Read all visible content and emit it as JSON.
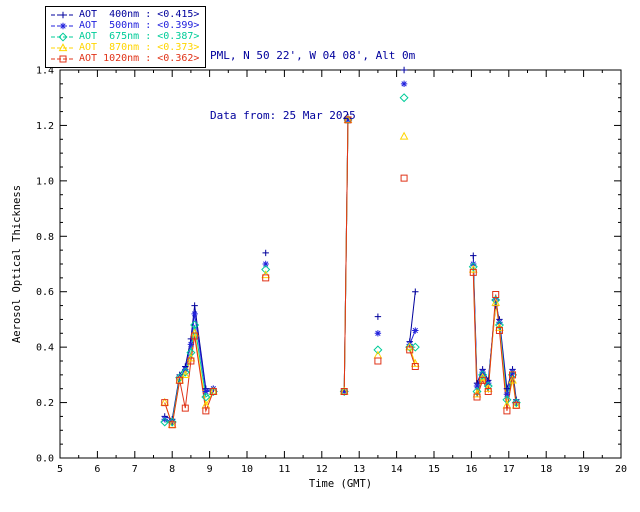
{
  "header": {
    "line1": "PML, N 50 22', W 04 08', Alt 0m",
    "line2": "Data from: 25 Mar 2025",
    "color": "#00009c"
  },
  "chart_data": {
    "type": "line",
    "title": "",
    "xlabel": "Time (GMT)",
    "ylabel": "Aerosol Optical Thickness",
    "xlim": [
      5,
      20
    ],
    "ylim": [
      0.0,
      1.4
    ],
    "xticks": [
      5,
      6,
      7,
      8,
      9,
      10,
      11,
      12,
      13,
      14,
      15,
      16,
      17,
      18,
      19,
      20
    ],
    "yticks": [
      0.0,
      0.2,
      0.4,
      0.6,
      0.8,
      1.0,
      1.2,
      1.4
    ],
    "grid": false,
    "legend_position": "top-left",
    "cluster_x": [
      [
        7.8,
        8.0,
        8.2,
        8.35,
        8.5,
        8.6,
        8.9,
        9.1
      ],
      [
        10.5
      ],
      [
        12.6,
        12.7
      ],
      [
        13.5
      ],
      [
        14.2
      ],
      [
        14.35,
        14.5
      ],
      [
        16.05,
        16.15,
        16.3,
        16.45,
        16.65,
        16.75,
        16.95,
        17.1,
        17.2
      ]
    ],
    "series": [
      {
        "label": "AOT  400nm : <0.415>",
        "name": "AOT 400nm",
        "mean": "<0.415>",
        "color": "#00009c",
        "marker": "plus",
        "clusters_y": [
          [
            0.15,
            0.14,
            0.3,
            0.33,
            0.43,
            0.55,
            0.25,
            0.25
          ],
          [
            0.74
          ],
          [
            0.24,
            1.23
          ],
          [
            0.51
          ],
          [
            1.4
          ],
          [
            0.42,
            0.6
          ],
          [
            0.73,
            0.27,
            0.32,
            0.28,
            0.55,
            0.5,
            0.25,
            0.32,
            0.21
          ]
        ]
      },
      {
        "label": "AOT  500nm : <0.399>",
        "name": "AOT 500nm",
        "mean": "<0.399>",
        "color": "#2222dd",
        "marker": "asterisk",
        "clusters_y": [
          [
            0.14,
            0.13,
            0.29,
            0.32,
            0.41,
            0.52,
            0.24,
            0.25
          ],
          [
            0.7
          ],
          [
            0.24,
            1.22
          ],
          [
            0.45
          ],
          [
            1.35
          ],
          [
            0.41,
            0.46
          ],
          [
            0.7,
            0.26,
            0.31,
            0.27,
            0.57,
            0.49,
            0.23,
            0.31,
            0.2
          ]
        ]
      },
      {
        "label": "AOT  675nm : <0.387>",
        "name": "AOT 675nm",
        "mean": "<0.387>",
        "color": "#00cc99",
        "marker": "diamond",
        "clusters_y": [
          [
            0.13,
            0.13,
            0.29,
            0.31,
            0.38,
            0.48,
            0.22,
            0.24
          ],
          [
            0.68
          ],
          [
            0.24,
            1.22
          ],
          [
            0.39
          ],
          [
            1.3
          ],
          [
            0.4,
            0.4
          ],
          [
            0.69,
            0.24,
            0.3,
            0.26,
            0.57,
            0.48,
            0.21,
            0.3,
            0.2
          ]
        ]
      },
      {
        "label": "AOT  870nm : <0.373>",
        "name": "AOT 870nm",
        "mean": "<0.373>",
        "color": "#ffd500",
        "marker": "triangle",
        "clusters_y": [
          [
            0.2,
            0.12,
            0.28,
            0.3,
            0.36,
            0.45,
            0.19,
            0.24
          ],
          [
            0.66
          ],
          [
            0.24,
            1.22
          ],
          [
            0.37
          ],
          [
            1.16
          ],
          [
            0.4,
            0.34
          ],
          [
            0.68,
            0.23,
            0.29,
            0.25,
            0.56,
            0.47,
            0.19,
            0.28,
            0.19
          ]
        ]
      },
      {
        "label": "AOT 1020nm : <0.362>",
        "name": "AOT 1020nm",
        "mean": "<0.362>",
        "color": "#e03318",
        "marker": "square",
        "clusters_y": [
          [
            0.2,
            0.12,
            0.28,
            0.18,
            0.35,
            0.44,
            0.17,
            0.24
          ],
          [
            0.65
          ],
          [
            0.24,
            1.22
          ],
          [
            0.35
          ],
          [
            1.01
          ],
          [
            0.39,
            0.33
          ],
          [
            0.67,
            0.22,
            0.28,
            0.24,
            0.59,
            0.46,
            0.17,
            0.3,
            0.19
          ]
        ]
      }
    ]
  }
}
